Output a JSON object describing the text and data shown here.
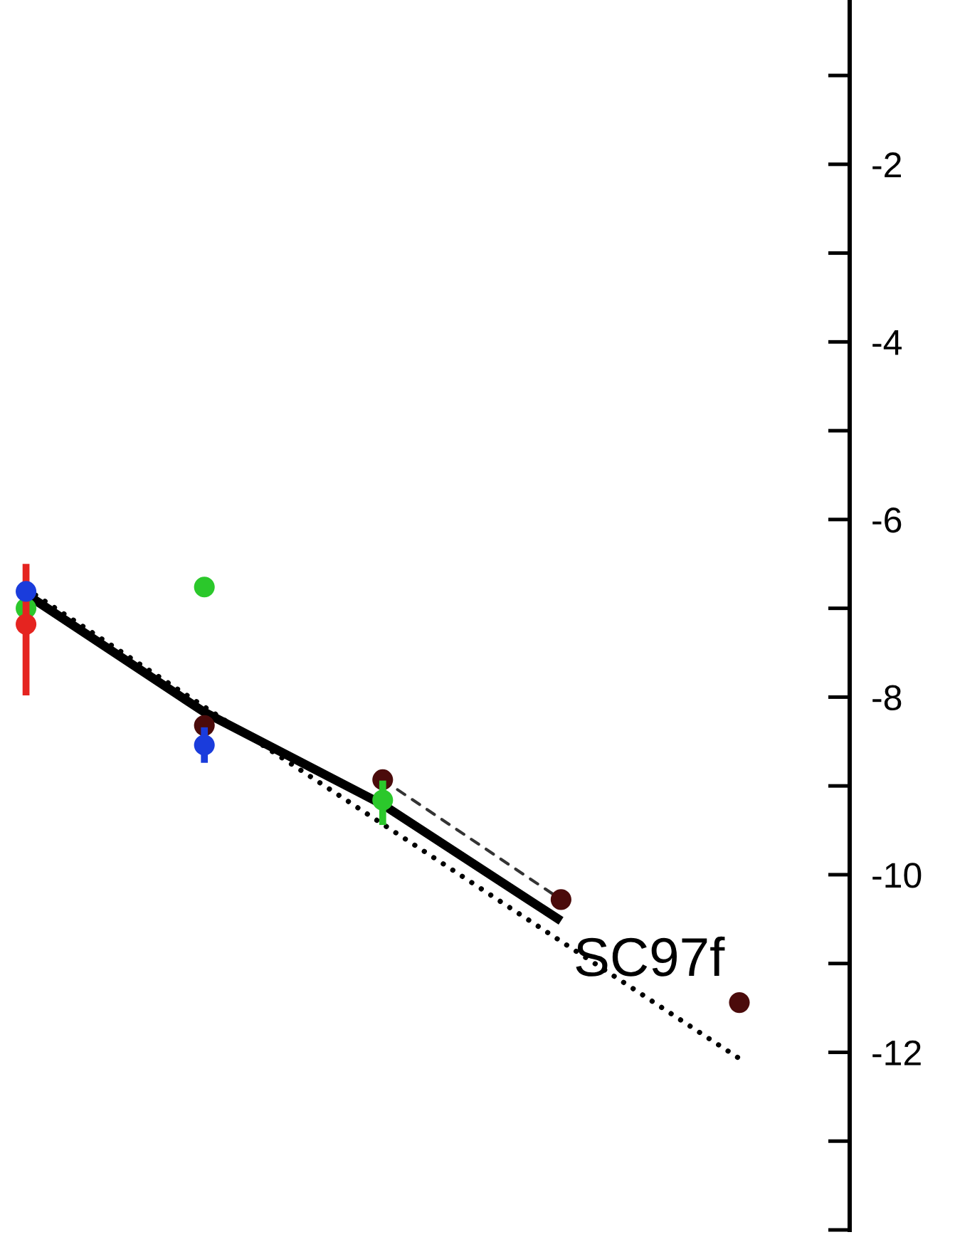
{
  "chart_data": {
    "type": "scatter",
    "categories": [
      null,
      null,
      null,
      null,
      null
    ],
    "series": [
      {
        "type": "line",
        "color": "#000000",
        "line_style": "solid",
        "marker": "none",
        "values": [
          -6.84,
          -8.17,
          -9.21,
          -10.52,
          null
        ]
      },
      {
        "type": "line",
        "color": "#000000",
        "line_style": "dotted",
        "marker": "none",
        "values": [
          -6.78,
          -8.11,
          -9.43,
          -10.75,
          -12.07
        ]
      },
      {
        "type": "line",
        "color": "#333333",
        "line_style": "dashed",
        "marker": "none",
        "values": [
          null,
          null,
          -8.93,
          -10.28,
          null
        ]
      },
      {
        "color": "#4b0b0b",
        "values": [
          null,
          -8.32,
          -8.93,
          -10.28,
          -11.44
        ]
      },
      {
        "color": "#2bc82b",
        "values": [
          -7.0,
          -6.76,
          -9.16,
          null,
          null
        ],
        "errors": [
          null,
          null,
          [
            -9.44,
            -8.94
          ],
          null,
          null
        ]
      },
      {
        "color": "#e52420",
        "values": [
          -7.18,
          null,
          null,
          null,
          null
        ],
        "errors": [
          [
            -7.98,
            -6.5
          ],
          null,
          null,
          null,
          null
        ]
      },
      {
        "color": "#1a3cdc",
        "values": [
          -6.81,
          -8.54,
          null,
          null,
          null
        ],
        "errors": [
          null,
          0.2,
          null,
          null,
          null
        ]
      }
    ],
    "ylim": [
      -14,
      -0.15
    ],
    "yticks": [
      {
        "value": -1,
        "label": null
      },
      -2,
      {
        "value": -3,
        "label": null
      },
      -4,
      {
        "value": -5,
        "label": null
      },
      -6,
      {
        "value": -7,
        "label": null
      },
      -8,
      {
        "value": -9,
        "label": null
      },
      -10,
      {
        "value": -11,
        "label": null
      },
      -12,
      {
        "value": -13,
        "label": null
      },
      {
        "value": -14,
        "label": null
      }
    ],
    "tick_labels": "y",
    "marker": "circle",
    "annotations": [
      "SC97f"
    ]
  }
}
